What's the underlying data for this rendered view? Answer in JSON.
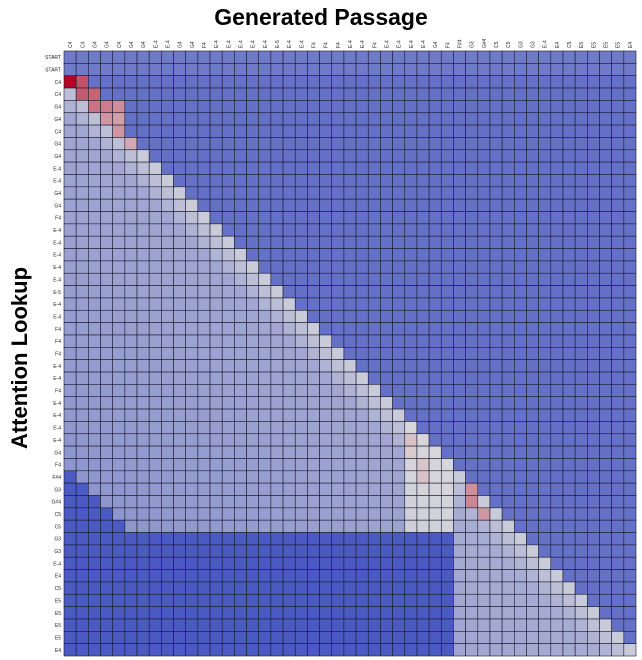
{
  "chart_data": {
    "type": "heatmap",
    "title": "Generated Passage",
    "xlabel": "Generated Passage",
    "ylabel": "Attention Lookup",
    "x_tick_labels": [
      "C4",
      "C4",
      "G4",
      "G4",
      "C4",
      "G4",
      "G4",
      "E-4",
      "E-4",
      "G4",
      "G4",
      "F4",
      "E-4",
      "E-4",
      "E-4",
      "E-4",
      "E-4",
      "E-5",
      "E-4",
      "E-4",
      "F4",
      "F4",
      "F4",
      "E-4",
      "E-4",
      "F4",
      "E-4",
      "E-4",
      "E-4",
      "E-4",
      "G4",
      "F4",
      "F#4",
      "G3",
      "G#4",
      "C5",
      "C5",
      "G3",
      "G3",
      "E-4",
      "E4",
      "C5",
      "E5",
      "E5",
      "E5",
      "E5",
      "E4"
    ],
    "y_tick_labels": [
      "START",
      "START",
      "C4",
      "C4",
      "G4",
      "G4",
      "C4",
      "G4",
      "G4",
      "E-4",
      "E-4",
      "G4",
      "G4",
      "F4",
      "E-4",
      "E-4",
      "E-4",
      "E-4",
      "E-4",
      "E-5",
      "E-4",
      "E-4",
      "F4",
      "F4",
      "F4",
      "E-4",
      "E-4",
      "F4",
      "E-4",
      "E-4",
      "E-4",
      "E-4",
      "G4",
      "F4",
      "F#4",
      "G3",
      "G#4",
      "C5",
      "C5",
      "G3",
      "G3",
      "E-4",
      "E4",
      "C5",
      "E5",
      "E5",
      "E5",
      "E5",
      "E4"
    ],
    "colormap": "coolwarm",
    "color_low": "#3b4cc0",
    "color_mid": "#dddcdc",
    "color_high": "#b40426",
    "value_range": [
      0,
      1
    ],
    "grid": true,
    "legend": "none",
    "rows": 49,
    "cols": 47,
    "description_of_values": "attention weight",
    "hot_cells": [
      {
        "row": 2,
        "col": 0,
        "value": 1.0
      },
      {
        "row": 2,
        "col": 1,
        "value": 0.82
      },
      {
        "row": 3,
        "col": 1,
        "value": 0.8
      },
      {
        "row": 3,
        "col": 2,
        "value": 0.78
      },
      {
        "row": 4,
        "col": 2,
        "value": 0.74
      },
      {
        "row": 4,
        "col": 3,
        "value": 0.72
      },
      {
        "row": 4,
        "col": 4,
        "value": 0.68
      },
      {
        "row": 5,
        "col": 3,
        "value": 0.66
      },
      {
        "row": 5,
        "col": 4,
        "value": 0.64
      },
      {
        "row": 6,
        "col": 4,
        "value": 0.66
      },
      {
        "row": 7,
        "col": 5,
        "value": 0.62
      },
      {
        "row": 31,
        "col": 28,
        "value": 0.56
      },
      {
        "row": 32,
        "col": 28,
        "value": 0.54
      },
      {
        "row": 33,
        "col": 29,
        "value": 0.55
      },
      {
        "row": 34,
        "col": 29,
        "value": 0.56
      },
      {
        "row": 35,
        "col": 33,
        "value": 0.68
      },
      {
        "row": 36,
        "col": 33,
        "value": 0.7
      },
      {
        "row": 37,
        "col": 34,
        "value": 0.66
      }
    ],
    "bands": [
      {
        "row_start": 2,
        "row_end": 38,
        "col_start": 0,
        "col_end": 28,
        "value": 0.32
      },
      {
        "row_start": 30,
        "row_end": 38,
        "col_start": 28,
        "col_end": 32,
        "value": 0.48
      },
      {
        "row_start": 36,
        "row_end": 48,
        "col_start": 32,
        "col_end": 47,
        "value": 0.34
      }
    ]
  }
}
